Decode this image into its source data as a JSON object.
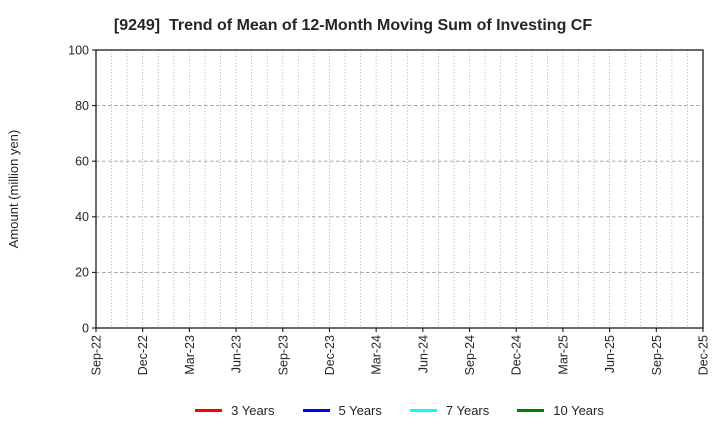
{
  "chart_data": {
    "type": "line",
    "title": "[9249]  Trend of Mean of 12-Month Moving Sum of Investing CF",
    "xlabel": "",
    "ylabel": "Amount (million yen)",
    "ylim": [
      0,
      100
    ],
    "yticks": [
      0,
      20,
      40,
      60,
      80,
      100
    ],
    "x_tick_labels": [
      "Sep-22",
      "Dec-22",
      "Mar-23",
      "Jun-23",
      "Sep-23",
      "Dec-23",
      "Mar-24",
      "Jun-24",
      "Sep-24",
      "Dec-24",
      "Mar-25",
      "Jun-25",
      "Sep-25",
      "Dec-25"
    ],
    "x_span_months": 39,
    "x_tick_interval_months": 3,
    "x_minor_gridline_interval_months": 1,
    "grid": true,
    "plot_empty": true,
    "legend_position": "bottom",
    "series": [
      {
        "name": "3 Years",
        "color": "#ff0000",
        "values": []
      },
      {
        "name": "5 Years",
        "color": "#0000ff",
        "values": []
      },
      {
        "name": "7 Years",
        "color": "#00ffff",
        "values": []
      },
      {
        "name": "10 Years",
        "color": "#008000",
        "values": []
      }
    ]
  }
}
